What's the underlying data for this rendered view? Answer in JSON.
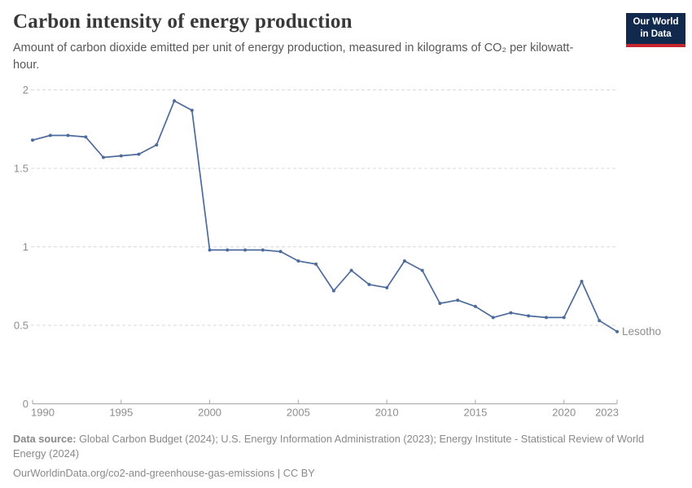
{
  "header": {
    "title": "Carbon intensity of energy production",
    "subtitle": "Amount of carbon dioxide emitted per unit of energy production, measured in kilograms of CO₂ per kilowatt-hour.",
    "logo": {
      "line1": "Our World",
      "line2": "in Data"
    }
  },
  "chart_data": {
    "type": "line",
    "title": "Carbon intensity of energy production",
    "xlabel": "",
    "ylabel": "",
    "x": [
      1990,
      1991,
      1992,
      1993,
      1994,
      1995,
      1996,
      1997,
      1998,
      1999,
      2000,
      2001,
      2002,
      2003,
      2004,
      2005,
      2006,
      2007,
      2008,
      2009,
      2010,
      2011,
      2012,
      2013,
      2014,
      2015,
      2016,
      2017,
      2018,
      2019,
      2020,
      2021,
      2022,
      2023
    ],
    "series": [
      {
        "name": "Lesotho",
        "color": "#4c6a9c",
        "values": [
          1.68,
          1.71,
          1.71,
          1.7,
          1.57,
          1.58,
          1.59,
          1.65,
          1.93,
          1.87,
          0.98,
          0.98,
          0.98,
          0.98,
          0.97,
          0.91,
          0.89,
          0.72,
          0.85,
          0.76,
          0.74,
          0.91,
          0.85,
          0.64,
          0.66,
          0.62,
          0.55,
          0.58,
          0.56,
          0.55,
          0.55,
          0.78,
          0.53,
          0.46
        ]
      }
    ],
    "xlim": [
      1990,
      2023
    ],
    "ylim": [
      0,
      2
    ],
    "yticks": [
      0,
      0.5,
      1,
      1.5,
      2
    ],
    "xticks": [
      1990,
      1995,
      2000,
      2005,
      2010,
      2015,
      2020,
      2023
    ],
    "grid": "horizontal-dashed",
    "legend": "end-of-line-label",
    "marker": "point"
  },
  "footer": {
    "datasource_label": "Data source:",
    "datasource_text": " Global Carbon Budget (2024); U.S. Energy Information Administration (2023); Energy Institute - Statistical Review of World Energy (2024)",
    "license_line": "OurWorldinData.org/co2-and-greenhouse-gas-emissions | CC BY"
  },
  "colors": {
    "line": "#4c6a9c",
    "grid": "#dadada",
    "axis": "#a6a6a6",
    "tick_text": "#8d8d8d",
    "logo_navy": "#12294e",
    "logo_red": "#c6252d"
  }
}
